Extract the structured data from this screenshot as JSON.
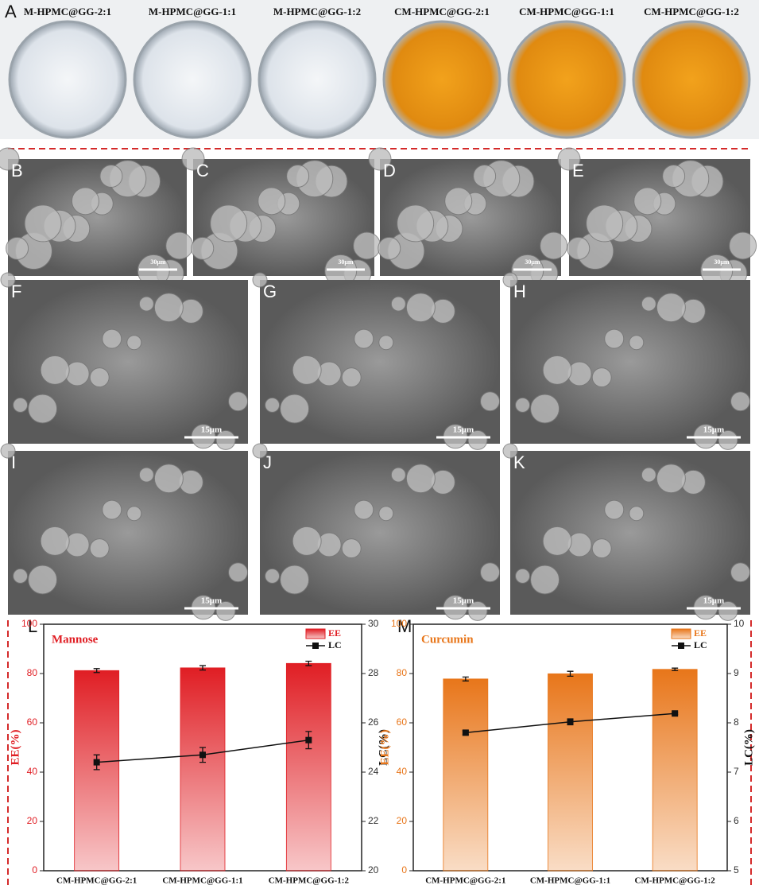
{
  "panel_a": {
    "label": "A",
    "samples": [
      "M-HPMC@GG-2:1",
      "M-HPMC@GG-1:1",
      "M-HPMC@GG-1:2",
      "CM-HPMC@GG-2:1",
      "CM-HPMC@GG-1:1",
      "CM-HPMC@GG-1:2"
    ]
  },
  "sem_panels": [
    {
      "label": "B",
      "scale": "30μm"
    },
    {
      "label": "C",
      "scale": "30μm"
    },
    {
      "label": "D",
      "scale": "30μm"
    },
    {
      "label": "E",
      "scale": "30μm"
    },
    {
      "label": "F",
      "scale": "15μm"
    },
    {
      "label": "G",
      "scale": "15μm"
    },
    {
      "label": "H",
      "scale": "15μm"
    },
    {
      "label": "I",
      "scale": "15μm"
    },
    {
      "label": "J",
      "scale": "15μm"
    },
    {
      "label": "K",
      "scale": "15μm"
    }
  ],
  "chart_data": [
    {
      "type": "bar",
      "panel_label": "L",
      "annotation": "Mannose",
      "categories": [
        "CM-HPMC@GG-2:1",
        "CM-HPMC@GG-1:1",
        "CM-HPMC@GG-1:2"
      ],
      "series": [
        {
          "name": "EE",
          "color": "#e01e24",
          "values": [
            81.2,
            82.3,
            84.1
          ],
          "errors": [
            0.8,
            0.9,
            0.9
          ]
        },
        {
          "name": "LC",
          "color": "#111111",
          "type": "line",
          "axis": "y2",
          "values": [
            24.4,
            24.7,
            25.3
          ],
          "errors": [
            0.3,
            0.3,
            0.35
          ]
        }
      ],
      "ylabel": "EE(%)",
      "y2label": "LC(%)",
      "ylim": [
        0,
        100
      ],
      "yticks": [
        0,
        20,
        40,
        60,
        80,
        100
      ],
      "y2lim": [
        20,
        30
      ],
      "y2ticks": [
        20,
        22,
        24,
        26,
        28,
        30
      ]
    },
    {
      "type": "bar",
      "panel_label": "M",
      "annotation": "Curcumin",
      "categories": [
        "CM-HPMC@GG-2:1",
        "CM-HPMC@GG-1:1",
        "CM-HPMC@GG-1:2"
      ],
      "series": [
        {
          "name": "EE",
          "color": "#e8761a",
          "values": [
            77.8,
            79.9,
            81.7
          ],
          "errors": [
            0.8,
            1.0,
            0.5
          ]
        },
        {
          "name": "LC",
          "color": "#111111",
          "type": "line",
          "axis": "y2",
          "values": [
            7.8,
            8.02,
            8.19
          ],
          "errors": [
            0.04,
            0.06,
            0.02
          ]
        }
      ],
      "ylabel": "EE(%)",
      "y2label": "LC(%)",
      "ylim": [
        0,
        100
      ],
      "yticks": [
        0,
        20,
        40,
        60,
        80,
        100
      ],
      "y2lim": [
        5,
        10
      ],
      "y2ticks": [
        5,
        6,
        7,
        8,
        9,
        10
      ]
    }
  ]
}
